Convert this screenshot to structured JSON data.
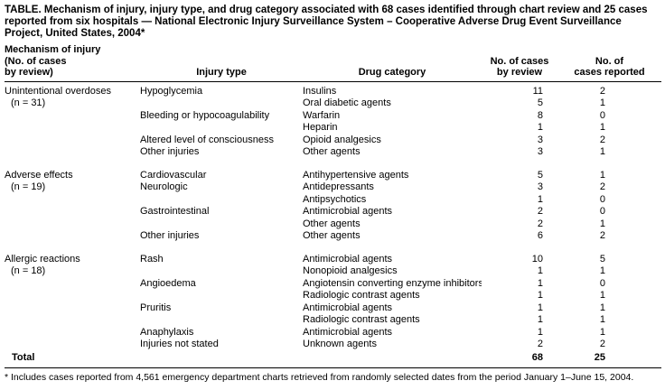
{
  "title": "TABLE. Mechanism of injury, injury type, and drug category associated with 68 cases identified through chart review and 25 cases reported from six hospitals — National Electronic Injury Surveillance System – Cooperative Adverse Drug Event Surveillance Project, United States, 2004*",
  "headers": {
    "mechanism": "Mechanism of injury\n(No. of cases\nby review)",
    "injury": "Injury type",
    "drug": "Drug category",
    "review": "No. of cases\nby review",
    "reported": "No. of\ncases reported"
  },
  "rows": [
    {
      "mech": "Unintentional overdoses",
      "injury": "Hypoglycemia",
      "drug": "Insulins",
      "review": "11",
      "reported": "2"
    },
    {
      "mech": "(n = 31)",
      "injury": "",
      "drug": "Oral diabetic agents",
      "review": "5",
      "reported": "1"
    },
    {
      "mech": "",
      "injury": "Bleeding or hypocoagulability",
      "drug": "Warfarin",
      "review": "8",
      "reported": "0"
    },
    {
      "mech": "",
      "injury": "",
      "drug": "Heparin",
      "review": "1",
      "reported": "1"
    },
    {
      "mech": "",
      "injury": "Altered level of consciousness",
      "drug": "Opioid analgesics",
      "review": "3",
      "reported": "2"
    },
    {
      "mech": "",
      "injury": "Other injuries",
      "drug": "Other agents",
      "review": "3",
      "reported": "1"
    },
    {
      "mech": "Adverse effects",
      "injury": "Cardiovascular",
      "drug": "Antihypertensive agents",
      "review": "5",
      "reported": "1"
    },
    {
      "mech": "(n = 19)",
      "injury": "Neurologic",
      "drug": "Antidepressants",
      "review": "3",
      "reported": "2"
    },
    {
      "mech": "",
      "injury": "",
      "drug": "Antipsychotics",
      "review": "1",
      "reported": "0"
    },
    {
      "mech": "",
      "injury": "Gastrointestinal",
      "drug": "Antimicrobial agents",
      "review": "2",
      "reported": "0"
    },
    {
      "mech": "",
      "injury": "",
      "drug": "Other agents",
      "review": "2",
      "reported": "1"
    },
    {
      "mech": "",
      "injury": "Other injuries",
      "drug": "Other agents",
      "review": "6",
      "reported": "2"
    },
    {
      "mech": "Allergic reactions",
      "injury": "Rash",
      "drug": "Antimicrobial agents",
      "review": "10",
      "reported": "5"
    },
    {
      "mech": "(n = 18)",
      "injury": "",
      "drug": "Nonopioid analgesics",
      "review": "1",
      "reported": "1"
    },
    {
      "mech": "",
      "injury": "Angioedema",
      "drug": "Angiotensin converting enzyme inhibitors",
      "review": "1",
      "reported": "0"
    },
    {
      "mech": "",
      "injury": "",
      "drug": "Radiologic contrast agents",
      "review": "1",
      "reported": "1"
    },
    {
      "mech": "",
      "injury": "Pruritis",
      "drug": "Antimicrobial agents",
      "review": "1",
      "reported": "1"
    },
    {
      "mech": "",
      "injury": "",
      "drug": "Radiologic contrast agents",
      "review": "1",
      "reported": "1"
    },
    {
      "mech": "",
      "injury": "Anaphylaxis",
      "drug": "Antimicrobial agents",
      "review": "1",
      "reported": "1"
    },
    {
      "mech": "",
      "injury": "Injuries not stated",
      "drug": "Unknown agents",
      "review": "2",
      "reported": "2"
    }
  ],
  "total": {
    "label": "Total",
    "review": "68",
    "reported": "25"
  },
  "footnote": "* Includes cases reported from 4,561 emergency department charts retrieved from randomly selected dates from the period January 1–June 15, 2004.",
  "colors": {
    "text": "#000000",
    "rule": "#000000",
    "background": "#ffffff"
  }
}
